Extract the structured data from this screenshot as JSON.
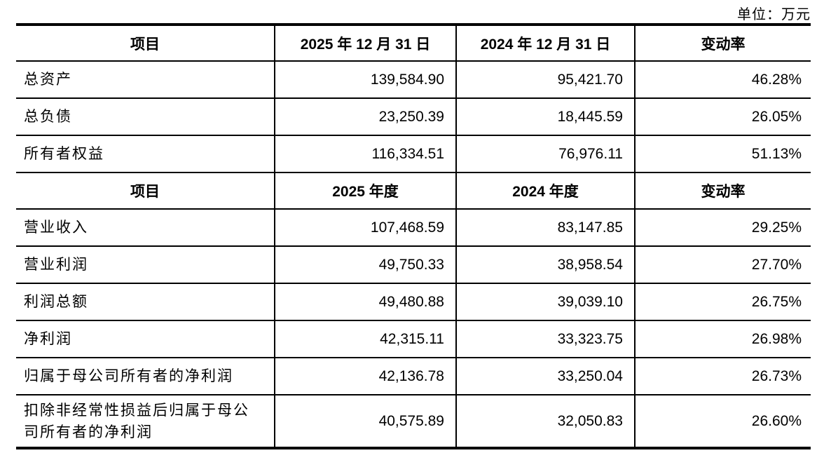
{
  "unit_label": "单位：万元",
  "colors": {
    "text": "#000000",
    "border": "#000000",
    "background": "#ffffff"
  },
  "table": {
    "sections": [
      {
        "header": [
          "项目",
          "2025 年 12 月 31 日",
          "2024 年 12 月 31 日",
          "变动率"
        ],
        "rows": [
          [
            "总资产",
            "139,584.90",
            "95,421.70",
            "46.28%"
          ],
          [
            "总负债",
            "23,250.39",
            "18,445.59",
            "26.05%"
          ],
          [
            "所有者权益",
            "116,334.51",
            "76,976.11",
            "51.13%"
          ]
        ]
      },
      {
        "header": [
          "项目",
          "2025 年度",
          "2024 年度",
          "变动率"
        ],
        "rows": [
          [
            "营业收入",
            "107,468.59",
            "83,147.85",
            "29.25%"
          ],
          [
            "营业利润",
            "49,750.33",
            "38,958.54",
            "27.70%"
          ],
          [
            "利润总额",
            "49,480.88",
            "39,039.10",
            "26.75%"
          ],
          [
            "净利润",
            "42,315.11",
            "33,323.75",
            "26.98%"
          ],
          [
            "归属于母公司所有者的净利润",
            "42,136.78",
            "33,250.04",
            "26.73%"
          ],
          [
            "扣除非经常性损益后归属于母公司所有者的净利润",
            "40,575.89",
            "32,050.83",
            "26.60%"
          ]
        ]
      }
    ]
  }
}
